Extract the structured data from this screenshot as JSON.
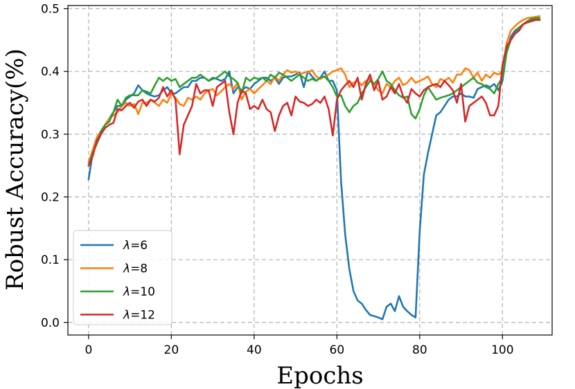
{
  "chart_data": {
    "type": "line",
    "xlabel": "Epochs",
    "ylabel": "Robust Accuracy(%)",
    "xlim": [
      -5,
      112
    ],
    "ylim": [
      -0.02,
      0.505
    ],
    "xticks": [
      0,
      20,
      40,
      60,
      80,
      100
    ],
    "yticks": [
      0.0,
      0.1,
      0.2,
      0.3,
      0.4,
      0.5
    ],
    "xtick_labels": [
      "0",
      "20",
      "40",
      "60",
      "80",
      "100"
    ],
    "ytick_labels": [
      "0.0",
      "0.1",
      "0.2",
      "0.3",
      "0.4",
      "0.5"
    ],
    "grid": true,
    "legend_position": "lower-left",
    "x": [
      0,
      1,
      2,
      3,
      4,
      5,
      6,
      7,
      8,
      9,
      10,
      11,
      12,
      13,
      14,
      15,
      16,
      17,
      18,
      19,
      20,
      21,
      22,
      23,
      24,
      25,
      26,
      27,
      28,
      29,
      30,
      31,
      32,
      33,
      34,
      35,
      36,
      37,
      38,
      39,
      40,
      41,
      42,
      43,
      44,
      45,
      46,
      47,
      48,
      49,
      50,
      51,
      52,
      53,
      54,
      55,
      56,
      57,
      58,
      59,
      60,
      61,
      62,
      63,
      64,
      65,
      66,
      67,
      68,
      69,
      70,
      71,
      72,
      73,
      74,
      75,
      76,
      77,
      78,
      79,
      80,
      81,
      82,
      83,
      84,
      85,
      86,
      87,
      88,
      89,
      90,
      91,
      92,
      93,
      94,
      95,
      96,
      97,
      98,
      99,
      100,
      101,
      102,
      103,
      104,
      105,
      106,
      107,
      108,
      109
    ],
    "series": [
      {
        "name": "λ=6",
        "color": "#1f77b4",
        "values": [
          0.228,
          0.27,
          0.285,
          0.3,
          0.315,
          0.325,
          0.335,
          0.345,
          0.345,
          0.355,
          0.36,
          0.365,
          0.378,
          0.37,
          0.365,
          0.362,
          0.36,
          0.362,
          0.37,
          0.375,
          0.365,
          0.365,
          0.37,
          0.375,
          0.375,
          0.385,
          0.385,
          0.39,
          0.39,
          0.385,
          0.39,
          0.388,
          0.385,
          0.388,
          0.4,
          0.365,
          0.375,
          0.37,
          0.375,
          0.372,
          0.38,
          0.385,
          0.39,
          0.39,
          0.385,
          0.39,
          0.38,
          0.39,
          0.392,
          0.392,
          0.395,
          0.398,
          0.375,
          0.4,
          0.392,
          0.385,
          0.39,
          0.4,
          0.385,
          0.385,
          0.37,
          0.225,
          0.14,
          0.085,
          0.05,
          0.035,
          0.03,
          0.02,
          0.012,
          0.01,
          0.008,
          0.005,
          0.025,
          0.03,
          0.018,
          0.042,
          0.025,
          0.018,
          0.012,
          0.008,
          0.145,
          0.235,
          0.27,
          0.3,
          0.33,
          0.335,
          0.345,
          0.355,
          0.36,
          0.36,
          0.365,
          0.36,
          0.36,
          0.358,
          0.372,
          0.375,
          0.378,
          0.375,
          0.38,
          0.37,
          0.385,
          0.43,
          0.455,
          0.465,
          0.47,
          0.475,
          0.48,
          0.482,
          0.484,
          0.482
        ]
      },
      {
        "name": "λ=8",
        "color": "#ff7f0e",
        "values": [
          0.255,
          0.275,
          0.295,
          0.305,
          0.315,
          0.325,
          0.33,
          0.335,
          0.345,
          0.35,
          0.345,
          0.348,
          0.332,
          0.35,
          0.35,
          0.355,
          0.35,
          0.345,
          0.355,
          0.35,
          0.365,
          0.358,
          0.348,
          0.345,
          0.358,
          0.355,
          0.36,
          0.355,
          0.365,
          0.37,
          0.372,
          0.362,
          0.368,
          0.375,
          0.38,
          0.372,
          0.382,
          0.355,
          0.368,
          0.372,
          0.365,
          0.372,
          0.378,
          0.385,
          0.38,
          0.392,
          0.385,
          0.395,
          0.402,
          0.398,
          0.4,
          0.395,
          0.398,
          0.398,
          0.402,
          0.392,
          0.388,
          0.392,
          0.395,
          0.4,
          0.402,
          0.405,
          0.395,
          0.375,
          0.382,
          0.385,
          0.378,
          0.385,
          0.388,
          0.38,
          0.37,
          0.365,
          0.38,
          0.375,
          0.385,
          0.39,
          0.378,
          0.382,
          0.39,
          0.382,
          0.385,
          0.388,
          0.392,
          0.38,
          0.375,
          0.388,
          0.385,
          0.39,
          0.382,
          0.395,
          0.395,
          0.405,
          0.402,
          0.39,
          0.398,
          0.385,
          0.395,
          0.39,
          0.398,
          0.395,
          0.4,
          0.445,
          0.465,
          0.472,
          0.478,
          0.482,
          0.485,
          0.486,
          0.487,
          0.488
        ]
      },
      {
        "name": "λ=10",
        "color": "#2ca02c",
        "values": [
          0.25,
          0.27,
          0.285,
          0.305,
          0.315,
          0.32,
          0.335,
          0.355,
          0.345,
          0.358,
          0.362,
          0.362,
          0.362,
          0.37,
          0.368,
          0.365,
          0.378,
          0.39,
          0.385,
          0.39,
          0.385,
          0.388,
          0.375,
          0.38,
          0.385,
          0.39,
          0.39,
          0.395,
          0.39,
          0.385,
          0.388,
          0.39,
          0.395,
          0.4,
          0.392,
          0.388,
          0.382,
          0.365,
          0.39,
          0.385,
          0.39,
          0.388,
          0.39,
          0.385,
          0.395,
          0.39,
          0.398,
          0.395,
          0.39,
          0.385,
          0.39,
          0.395,
          0.39,
          0.385,
          0.388,
          0.385,
          0.39,
          0.392,
          0.385,
          0.375,
          0.36,
          0.362,
          0.345,
          0.335,
          0.345,
          0.35,
          0.365,
          0.375,
          0.385,
          0.38,
          0.388,
          0.4,
          0.385,
          0.38,
          0.37,
          0.362,
          0.358,
          0.36,
          0.332,
          0.325,
          0.34,
          0.362,
          0.375,
          0.365,
          0.355,
          0.358,
          0.36,
          0.362,
          0.365,
          0.37,
          0.375,
          0.38,
          0.385,
          0.39,
          0.382,
          0.38,
          0.375,
          0.372,
          0.365,
          0.38,
          0.39,
          0.43,
          0.45,
          0.46,
          0.47,
          0.475,
          0.48,
          0.484,
          0.485,
          0.485
        ]
      },
      {
        "name": "λ=12",
        "color": "#d62728",
        "values": [
          0.25,
          0.265,
          0.29,
          0.3,
          0.31,
          0.315,
          0.318,
          0.34,
          0.338,
          0.345,
          0.35,
          0.342,
          0.352,
          0.355,
          0.345,
          0.355,
          0.352,
          0.358,
          0.375,
          0.36,
          0.37,
          0.355,
          0.268,
          0.315,
          0.33,
          0.345,
          0.38,
          0.365,
          0.37,
          0.37,
          0.345,
          0.375,
          0.38,
          0.385,
          0.335,
          0.3,
          0.35,
          0.37,
          0.365,
          0.34,
          0.345,
          0.34,
          0.355,
          0.34,
          0.335,
          0.305,
          0.33,
          0.345,
          0.35,
          0.33,
          0.36,
          0.352,
          0.35,
          0.345,
          0.348,
          0.355,
          0.35,
          0.36,
          0.34,
          0.298,
          0.355,
          0.37,
          0.378,
          0.385,
          0.375,
          0.39,
          0.355,
          0.38,
          0.395,
          0.37,
          0.385,
          0.355,
          0.36,
          0.375,
          0.365,
          0.38,
          0.36,
          0.35,
          0.372,
          0.365,
          0.36,
          0.37,
          0.375,
          0.378,
          0.38,
          0.375,
          0.385,
          0.378,
          0.37,
          0.35,
          0.38,
          0.32,
          0.345,
          0.35,
          0.355,
          0.36,
          0.35,
          0.33,
          0.33,
          0.345,
          0.41,
          0.44,
          0.45,
          0.46,
          0.465,
          0.475,
          0.478,
          0.48,
          0.482,
          0.482
        ]
      }
    ]
  }
}
